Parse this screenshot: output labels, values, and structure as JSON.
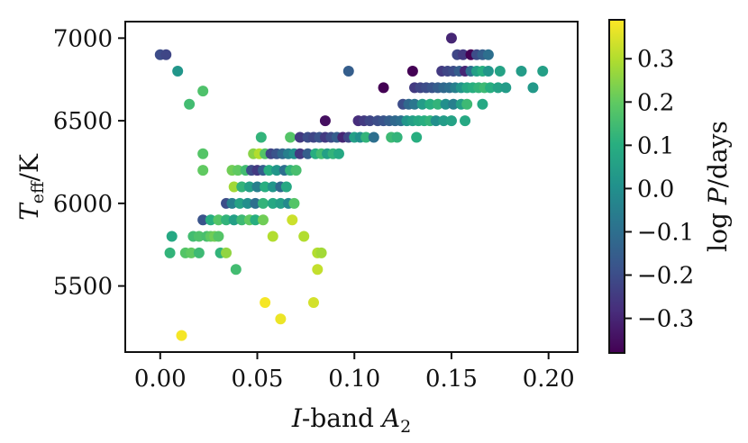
{
  "chart_data": {
    "type": "scatter",
    "title": "",
    "xlabel": "I-band A2",
    "ylabel": "Teff/K",
    "xlim": [
      -0.018,
      0.215
    ],
    "ylim": [
      5100,
      7100
    ],
    "xticks": [
      "0.00",
      "0.05",
      "0.10",
      "0.15",
      "0.20"
    ],
    "yticks": [
      "5500",
      "6000",
      "6500",
      "7000"
    ],
    "grid": false,
    "colorbar": {
      "label": "log P/days",
      "range": [
        -0.38,
        0.39
      ],
      "ticks": [
        "−0.3",
        "−0.2",
        "−0.1",
        "0.0",
        "0.1",
        "0.2",
        "0.3"
      ],
      "colormap": "viridis"
    },
    "points": [
      [
        0.0,
        6900,
        -0.2
      ],
      [
        0.003,
        6900,
        -0.22
      ],
      [
        0.009,
        6800,
        0.02
      ],
      [
        0.015,
        6600,
        0.15
      ],
      [
        0.022,
        6680,
        0.17
      ],
      [
        0.006,
        5800,
        0.08
      ],
      [
        0.005,
        5700,
        0.12
      ],
      [
        0.013,
        5700,
        0.18
      ],
      [
        0.016,
        5700,
        0.2
      ],
      [
        0.02,
        5700,
        0.14
      ],
      [
        0.017,
        5800,
        0.15
      ],
      [
        0.02,
        5800,
        0.17
      ],
      [
        0.024,
        5800,
        0.16
      ],
      [
        0.026,
        5800,
        0.2
      ],
      [
        0.028,
        5800,
        0.22
      ],
      [
        0.03,
        5800,
        0.18
      ],
      [
        0.031,
        5700,
        0.12
      ],
      [
        0.034,
        5700,
        0.26
      ],
      [
        0.039,
        5600,
        0.15
      ],
      [
        0.011,
        5200,
        0.38
      ],
      [
        0.022,
        5900,
        -0.18
      ],
      [
        0.026,
        5900,
        0.1
      ],
      [
        0.03,
        5900,
        0.18
      ],
      [
        0.034,
        5900,
        0.12
      ],
      [
        0.038,
        5900,
        0.05
      ],
      [
        0.042,
        5900,
        0.14
      ],
      [
        0.046,
        5900,
        0.2
      ],
      [
        0.049,
        5900,
        0.1
      ],
      [
        0.053,
        5900,
        0.22
      ],
      [
        0.022,
        6200,
        0.2
      ],
      [
        0.022,
        6300,
        0.18
      ],
      [
        0.034,
        6000,
        -0.2
      ],
      [
        0.037,
        6000,
        -0.05
      ],
      [
        0.041,
        6000,
        0.06
      ],
      [
        0.045,
        6000,
        0.0
      ],
      [
        0.049,
        6000,
        -0.1
      ],
      [
        0.053,
        6000,
        0.12
      ],
      [
        0.058,
        6000,
        0.08
      ],
      [
        0.062,
        6000,
        0.05
      ],
      [
        0.066,
        6000,
        -0.02
      ],
      [
        0.069,
        6000,
        0.18
      ],
      [
        0.038,
        6100,
        0.28
      ],
      [
        0.042,
        6100,
        0.12
      ],
      [
        0.046,
        6100,
        0.05
      ],
      [
        0.05,
        6100,
        -0.05
      ],
      [
        0.054,
        6100,
        0.1
      ],
      [
        0.058,
        6100,
        0.02
      ],
      [
        0.062,
        6100,
        -0.12
      ],
      [
        0.065,
        6100,
        0.08
      ],
      [
        0.037,
        6200,
        0.22
      ],
      [
        0.04,
        6200,
        0.2
      ],
      [
        0.044,
        6200,
        0.15
      ],
      [
        0.047,
        6200,
        -0.2
      ],
      [
        0.05,
        6200,
        -0.25
      ],
      [
        0.053,
        6200,
        -0.15
      ],
      [
        0.056,
        6200,
        0.1
      ],
      [
        0.06,
        6200,
        0.02
      ],
      [
        0.064,
        6200,
        -0.1
      ],
      [
        0.067,
        6200,
        0.12
      ],
      [
        0.07,
        6200,
        0.16
      ],
      [
        0.048,
        6300,
        0.25
      ],
      [
        0.051,
        6300,
        0.3
      ],
      [
        0.054,
        6300,
        0.18
      ],
      [
        0.057,
        6300,
        -0.22
      ],
      [
        0.06,
        6300,
        -0.18
      ],
      [
        0.063,
        6300,
        -0.12
      ],
      [
        0.066,
        6300,
        -0.05
      ],
      [
        0.069,
        6300,
        0.0
      ],
      [
        0.072,
        6300,
        -0.25
      ],
      [
        0.076,
        6300,
        -0.15
      ],
      [
        0.08,
        6300,
        0.1
      ],
      [
        0.083,
        6300,
        0.15
      ],
      [
        0.086,
        6300,
        0.05
      ],
      [
        0.089,
        6300,
        0.12
      ],
      [
        0.092,
        6300,
        0.08
      ],
      [
        0.052,
        6400,
        0.12
      ],
      [
        0.067,
        6400,
        0.18
      ],
      [
        0.072,
        6400,
        -0.25
      ],
      [
        0.076,
        6400,
        -0.2
      ],
      [
        0.079,
        6400,
        -0.22
      ],
      [
        0.082,
        6400,
        -0.18
      ],
      [
        0.085,
        6400,
        -0.25
      ],
      [
        0.088,
        6400,
        -0.2
      ],
      [
        0.091,
        6400,
        -0.15
      ],
      [
        0.094,
        6400,
        -0.3
      ],
      [
        0.097,
        6400,
        -0.22
      ],
      [
        0.1,
        6400,
        0.05
      ],
      [
        0.103,
        6400,
        0.0
      ],
      [
        0.106,
        6400,
        0.12
      ],
      [
        0.11,
        6400,
        -0.1
      ],
      [
        0.119,
        6400,
        0.14
      ],
      [
        0.122,
        6400,
        0.12
      ],
      [
        0.132,
        6400,
        0.1
      ],
      [
        0.085,
        6500,
        -0.35
      ],
      [
        0.102,
        6500,
        -0.28
      ],
      [
        0.105,
        6500,
        -0.25
      ],
      [
        0.108,
        6500,
        -0.22
      ],
      [
        0.112,
        6500,
        -0.2
      ],
      [
        0.115,
        6500,
        -0.18
      ],
      [
        0.118,
        6500,
        -0.15
      ],
      [
        0.121,
        6500,
        -0.12
      ],
      [
        0.124,
        6500,
        -0.1
      ],
      [
        0.127,
        6500,
        0.02
      ],
      [
        0.13,
        6500,
        0.05
      ],
      [
        0.133,
        6500,
        0.08
      ],
      [
        0.136,
        6500,
        0.1
      ],
      [
        0.139,
        6500,
        0.12
      ],
      [
        0.142,
        6500,
        0.0
      ],
      [
        0.146,
        6500,
        0.04
      ],
      [
        0.15,
        6500,
        0.06
      ],
      [
        0.157,
        6500,
        0.08
      ],
      [
        0.125,
        6600,
        -0.2
      ],
      [
        0.128,
        6600,
        -0.12
      ],
      [
        0.131,
        6600,
        -0.08
      ],
      [
        0.135,
        6600,
        0.04
      ],
      [
        0.139,
        6600,
        0.1
      ],
      [
        0.143,
        6600,
        0.12
      ],
      [
        0.147,
        6600,
        0.0
      ],
      [
        0.151,
        6600,
        -0.05
      ],
      [
        0.155,
        6600,
        0.05
      ],
      [
        0.158,
        6600,
        0.14
      ],
      [
        0.166,
        6600,
        0.08
      ],
      [
        0.115,
        6700,
        -0.38
      ],
      [
        0.131,
        6700,
        -0.25
      ],
      [
        0.134,
        6700,
        -0.22
      ],
      [
        0.137,
        6700,
        -0.2
      ],
      [
        0.14,
        6700,
        -0.18
      ],
      [
        0.143,
        6700,
        -0.15
      ],
      [
        0.146,
        6700,
        -0.12
      ],
      [
        0.149,
        6700,
        -0.1
      ],
      [
        0.152,
        6700,
        -0.05
      ],
      [
        0.155,
        6700,
        0.02
      ],
      [
        0.158,
        6700,
        0.08
      ],
      [
        0.161,
        6700,
        0.1
      ],
      [
        0.164,
        6700,
        0.12
      ],
      [
        0.167,
        6700,
        0.14
      ],
      [
        0.17,
        6700,
        0.1
      ],
      [
        0.174,
        6700,
        0.06
      ],
      [
        0.178,
        6700,
        0.04
      ],
      [
        0.192,
        6700,
        0.03
      ],
      [
        0.097,
        6800,
        -0.15
      ],
      [
        0.13,
        6800,
        -0.38
      ],
      [
        0.145,
        6800,
        -0.25
      ],
      [
        0.148,
        6800,
        -0.22
      ],
      [
        0.151,
        6800,
        -0.2
      ],
      [
        0.154,
        6800,
        -0.15
      ],
      [
        0.157,
        6800,
        -0.3
      ],
      [
        0.16,
        6800,
        -0.1
      ],
      [
        0.163,
        6800,
        0.05
      ],
      [
        0.166,
        6800,
        0.1
      ],
      [
        0.169,
        6800,
        0.02
      ],
      [
        0.175,
        6800,
        0.06
      ],
      [
        0.186,
        6800,
        0.04
      ],
      [
        0.197,
        6800,
        0.05
      ],
      [
        0.153,
        6900,
        -0.22
      ],
      [
        0.156,
        6900,
        -0.25
      ],
      [
        0.16,
        6900,
        -0.38
      ],
      [
        0.163,
        6900,
        -0.2
      ],
      [
        0.166,
        6900,
        -0.15
      ],
      [
        0.169,
        6900,
        -0.1
      ],
      [
        0.15,
        7000,
        -0.3
      ],
      [
        0.054,
        5400,
        0.38
      ],
      [
        0.062,
        5300,
        0.37
      ],
      [
        0.079,
        5400,
        0.34
      ],
      [
        0.058,
        5800,
        0.3
      ],
      [
        0.074,
        5800,
        0.3
      ],
      [
        0.081,
        5700,
        0.3
      ],
      [
        0.083,
        5700,
        0.28
      ],
      [
        0.081,
        5600,
        0.32
      ],
      [
        0.068,
        5900,
        0.33
      ]
    ]
  }
}
